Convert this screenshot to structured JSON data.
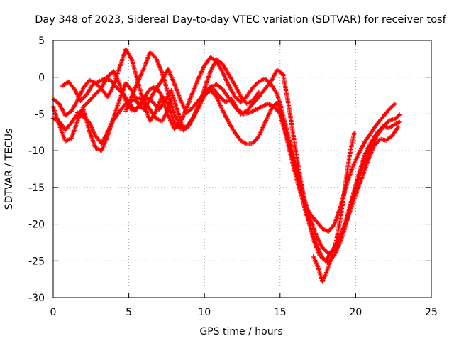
{
  "chart_data": {
    "type": "scatter",
    "title": "Day 348 of 2023, Sidereal Day-to-day VTEC variation (SDTVAR) for receiver tosf",
    "xlabel": "GPS time / hours",
    "ylabel": "SDTVAR / TECUs",
    "xlim": [
      0,
      25
    ],
    "ylim": [
      -30,
      5
    ],
    "xticks": [
      0,
      5,
      10,
      15,
      20,
      25
    ],
    "yticks": [
      5,
      0,
      -5,
      -10,
      -15,
      -20,
      -25,
      -30
    ],
    "grid": true,
    "marker": "+",
    "series_color": "#ff0000",
    "series": [
      {
        "name": "track-1",
        "points": [
          [
            0.0,
            -4.0
          ],
          [
            0.4,
            -6.5
          ],
          [
            0.8,
            -8.7
          ],
          [
            1.2,
            -8.3
          ],
          [
            1.6,
            -6.0
          ],
          [
            2.0,
            -4.0
          ],
          [
            2.4,
            -3.2
          ],
          [
            2.8,
            -2.3
          ],
          [
            3.2,
            -1.4
          ],
          [
            3.6,
            0.1
          ],
          [
            4.0,
            0.8
          ],
          [
            4.4,
            -1.0
          ],
          [
            4.8,
            -3.2
          ],
          [
            5.2,
            -4.5
          ],
          [
            5.6,
            -4.1
          ],
          [
            6.0,
            -2.8
          ],
          [
            6.4,
            -1.6
          ],
          [
            6.8,
            -1.3
          ],
          [
            7.2,
            -2.6
          ],
          [
            7.6,
            -5.2
          ],
          [
            8.0,
            -7.0
          ],
          [
            8.4,
            -6.3
          ],
          [
            8.8,
            -4.3
          ],
          [
            9.2,
            -2.2
          ],
          [
            9.6,
            -0.2
          ],
          [
            10.0,
            1.6
          ],
          [
            10.4,
            2.7
          ],
          [
            10.8,
            2.2
          ],
          [
            11.2,
            0.7
          ],
          [
            11.6,
            -1.1
          ],
          [
            12.0,
            -2.6
          ],
          [
            12.4,
            -3.4
          ],
          [
            12.8,
            -2.6
          ],
          [
            13.2,
            -1.4
          ],
          [
            13.6,
            -0.6
          ],
          [
            14.0,
            -0.2
          ],
          [
            14.4,
            -0.9
          ],
          [
            14.8,
            -2.3
          ],
          [
            15.0,
            -3.6
          ],
          [
            15.4,
            -6.8
          ],
          [
            15.8,
            -10.0
          ],
          [
            16.2,
            -13.2
          ],
          [
            16.6,
            -16.6
          ],
          [
            17.0,
            -19.2
          ],
          [
            17.4,
            -21.6
          ],
          [
            17.8,
            -23.2
          ],
          [
            18.2,
            -24.0
          ],
          [
            18.6,
            -23.5
          ],
          [
            19.0,
            -21.8
          ],
          [
            19.4,
            -19.2
          ],
          [
            19.8,
            -16.2
          ],
          [
            20.2,
            -13.2
          ],
          [
            20.6,
            -10.6
          ],
          [
            21.0,
            -8.9
          ],
          [
            21.4,
            -7.6
          ],
          [
            21.8,
            -6.7
          ],
          [
            22.2,
            -6.9
          ],
          [
            22.6,
            -6.4
          ],
          [
            22.9,
            -6.1
          ]
        ]
      },
      {
        "name": "track-2",
        "points": [
          [
            0.0,
            -3.0
          ],
          [
            0.4,
            -3.6
          ],
          [
            0.8,
            -5.2
          ],
          [
            1.2,
            -4.6
          ],
          [
            1.6,
            -3.2
          ],
          [
            2.0,
            -1.4
          ],
          [
            2.4,
            -0.4
          ],
          [
            2.8,
            -0.8
          ],
          [
            3.2,
            -1.6
          ],
          [
            3.6,
            -2.7
          ],
          [
            4.0,
            -1.1
          ],
          [
            4.4,
            1.4
          ],
          [
            4.8,
            3.8
          ],
          [
            5.2,
            2.4
          ],
          [
            5.6,
            -0.6
          ],
          [
            6.0,
            -3.6
          ],
          [
            6.4,
            -6.0
          ],
          [
            6.8,
            -4.6
          ],
          [
            7.2,
            -2.6
          ],
          [
            7.6,
            -3.6
          ],
          [
            8.0,
            -6.2
          ],
          [
            8.4,
            -7.0
          ],
          [
            8.8,
            -6.8
          ],
          [
            9.2,
            -5.7
          ],
          [
            9.6,
            -4.2
          ],
          [
            10.0,
            -2.5
          ],
          [
            10.4,
            -1.8
          ],
          [
            10.8,
            -2.7
          ],
          [
            11.2,
            -4.5
          ],
          [
            11.6,
            -6.1
          ],
          [
            12.0,
            -7.5
          ],
          [
            12.4,
            -8.6
          ],
          [
            12.8,
            -9.1
          ],
          [
            13.2,
            -9.0
          ],
          [
            13.6,
            -8.0
          ],
          [
            14.0,
            -6.2
          ],
          [
            14.4,
            -4.4
          ],
          [
            14.8,
            -3.4
          ],
          [
            15.0,
            -4.6
          ],
          [
            15.4,
            -7.6
          ],
          [
            15.8,
            -10.8
          ],
          [
            16.2,
            -14.0
          ],
          [
            16.6,
            -17.6
          ],
          [
            17.0,
            -20.4
          ],
          [
            17.4,
            -22.8
          ],
          [
            17.8,
            -24.6
          ],
          [
            18.2,
            -25.2
          ],
          [
            18.6,
            -24.2
          ],
          [
            19.0,
            -22.4
          ],
          [
            19.4,
            -19.7
          ],
          [
            19.8,
            -16.6
          ],
          [
            20.2,
            -13.8
          ],
          [
            20.6,
            -11.6
          ],
          [
            21.0,
            -9.6
          ],
          [
            21.4,
            -8.0
          ],
          [
            21.8,
            -6.8
          ],
          [
            22.2,
            -5.9
          ],
          [
            22.6,
            -5.7
          ],
          [
            22.9,
            -5.1
          ]
        ]
      },
      {
        "name": "track-3",
        "points": [
          [
            0.0,
            -5.6
          ],
          [
            0.4,
            -6.0
          ],
          [
            0.8,
            -7.2
          ],
          [
            1.2,
            -6.2
          ],
          [
            1.6,
            -5.0
          ],
          [
            2.0,
            -4.4
          ],
          [
            2.4,
            -7.4
          ],
          [
            2.8,
            -9.6
          ],
          [
            3.2,
            -10.0
          ],
          [
            3.6,
            -8.0
          ],
          [
            4.0,
            -5.4
          ],
          [
            4.4,
            -3.0
          ],
          [
            4.8,
            -0.8
          ],
          [
            5.2,
            -1.8
          ],
          [
            5.6,
            -3.6
          ],
          [
            6.0,
            -4.4
          ],
          [
            6.4,
            -3.0
          ],
          [
            6.8,
            -1.6
          ],
          [
            7.2,
            -0.4
          ],
          [
            7.6,
            1.1
          ],
          [
            8.0,
            -0.8
          ],
          [
            8.4,
            -3.0
          ],
          [
            8.8,
            -4.8
          ],
          [
            9.2,
            -4.2
          ],
          [
            9.6,
            -3.2
          ],
          [
            10.0,
            -2.2
          ],
          [
            10.4,
            -1.3
          ],
          [
            10.8,
            -1.0
          ],
          [
            11.2,
            -1.6
          ],
          [
            11.6,
            -2.8
          ],
          [
            12.0,
            -4.0
          ],
          [
            12.4,
            -5.0
          ],
          [
            12.8,
            -4.6
          ],
          [
            13.2,
            -3.6
          ],
          [
            13.6,
            -2.7
          ],
          [
            14.0,
            -1.6
          ],
          [
            14.4,
            -0.6
          ],
          [
            14.8,
            1.0
          ],
          [
            15.2,
            0.4
          ],
          [
            15.6,
            -4.2
          ],
          [
            16.0,
            -9.6
          ],
          [
            16.4,
            -14.4
          ],
          [
            16.8,
            -18.6
          ],
          [
            17.2,
            -22.0
          ],
          [
            17.6,
            -24.2
          ],
          [
            18.0,
            -25.0
          ],
          [
            18.4,
            -23.8
          ],
          [
            18.8,
            -22.4
          ],
          [
            19.2,
            -20.6
          ],
          [
            19.6,
            -18.4
          ],
          [
            20.0,
            -16.0
          ],
          [
            20.4,
            -13.8
          ],
          [
            20.8,
            -11.4
          ],
          [
            21.2,
            -9.4
          ],
          [
            21.6,
            -8.4
          ],
          [
            22.0,
            -8.6
          ],
          [
            22.4,
            -8.0
          ],
          [
            22.8,
            -6.8
          ]
        ]
      },
      {
        "name": "track-4",
        "points": [
          [
            0.6,
            -1.2
          ],
          [
            1.0,
            -0.6
          ],
          [
            1.4,
            -1.6
          ],
          [
            1.8,
            -3.2
          ],
          [
            2.2,
            -2.4
          ],
          [
            2.6,
            -1.0
          ],
          [
            3.0,
            -0.6
          ],
          [
            3.4,
            -0.2
          ],
          [
            3.8,
            -0.4
          ],
          [
            4.2,
            -1.4
          ],
          [
            4.6,
            -2.2
          ],
          [
            5.0,
            -3.4
          ],
          [
            5.4,
            -4.6
          ],
          [
            5.8,
            -3.8
          ],
          [
            6.2,
            -2.8
          ],
          [
            6.6,
            -3.4
          ],
          [
            7.0,
            -4.4
          ],
          [
            7.4,
            -3.2
          ],
          [
            7.8,
            -1.8
          ],
          [
            8.2,
            -4.4
          ],
          [
            8.6,
            -7.2
          ],
          [
            9.0,
            -6.6
          ],
          [
            9.4,
            -4.8
          ],
          [
            9.8,
            -3.0
          ],
          [
            10.2,
            -1.8
          ],
          [
            10.6,
            -1.6
          ],
          [
            11.0,
            -2.6
          ],
          [
            11.4,
            -3.4
          ],
          [
            11.8,
            -3.0
          ],
          [
            12.2,
            -4.4
          ],
          [
            12.6,
            -5.0
          ],
          [
            13.0,
            -4.8
          ],
          [
            13.4,
            -4.4
          ],
          [
            13.8,
            -4.0
          ],
          [
            14.2,
            -3.6
          ],
          [
            14.6,
            -4.0
          ],
          [
            15.0,
            -5.0
          ],
          [
            15.4,
            -8.0
          ],
          [
            15.8,
            -11.4
          ],
          [
            16.2,
            -14.6
          ],
          [
            16.6,
            -17.4
          ],
          [
            17.0,
            -18.6
          ],
          [
            17.4,
            -19.6
          ],
          [
            17.8,
            -20.6
          ],
          [
            18.2,
            -21.0
          ],
          [
            18.6,
            -20.0
          ],
          [
            19.0,
            -17.6
          ],
          [
            19.4,
            -14.6
          ],
          [
            19.8,
            -12.2
          ],
          [
            20.2,
            -10.4
          ],
          [
            20.6,
            -8.8
          ],
          [
            21.0,
            -7.6
          ],
          [
            21.4,
            -6.4
          ],
          [
            21.8,
            -5.4
          ],
          [
            22.2,
            -4.4
          ],
          [
            22.6,
            -3.6
          ]
        ]
      },
      {
        "name": "track-5",
        "points": [
          [
            4.8,
            -4.6
          ],
          [
            5.2,
            -2.6
          ],
          [
            5.6,
            -0.6
          ],
          [
            6.0,
            1.2
          ],
          [
            6.4,
            3.4
          ],
          [
            6.8,
            2.6
          ],
          [
            7.2,
            0.6
          ],
          [
            7.6,
            -2.2
          ],
          [
            8.0,
            -5.0
          ],
          [
            8.4,
            -6.6
          ],
          [
            8.8,
            -6.8
          ],
          [
            9.2,
            -5.8
          ],
          [
            9.6,
            -4.0
          ],
          [
            10.0,
            -1.6
          ],
          [
            10.4,
            0.8
          ],
          [
            10.8,
            2.4
          ],
          [
            11.2,
            1.8
          ],
          [
            11.6,
            0.4
          ],
          [
            12.0,
            -1.0
          ],
          [
            12.4,
            -2.6
          ],
          [
            12.8,
            -3.6
          ],
          [
            13.2,
            -3.2
          ],
          [
            13.6,
            -2.0
          ]
        ]
      },
      {
        "name": "track-6",
        "points": [
          [
            1.6,
            -4.8
          ],
          [
            2.0,
            -5.4
          ],
          [
            2.4,
            -6.2
          ],
          [
            2.8,
            -8.0
          ],
          [
            3.2,
            -9.0
          ],
          [
            3.6,
            -7.4
          ],
          [
            4.0,
            -5.8
          ],
          [
            4.4,
            -4.6
          ],
          [
            4.8,
            -3.6
          ],
          [
            5.2,
            -3.2
          ],
          [
            5.6,
            -2.8
          ],
          [
            6.0,
            -3.2
          ],
          [
            6.4,
            -4.4
          ],
          [
            6.8,
            -5.6
          ],
          [
            7.2,
            -6.0
          ],
          [
            7.6,
            -4.4
          ],
          [
            7.8,
            -3.0
          ]
        ]
      },
      {
        "name": "track-7",
        "points": [
          [
            17.2,
            -24.4
          ],
          [
            17.5,
            -25.8
          ],
          [
            17.8,
            -27.8
          ],
          [
            18.1,
            -26.4
          ],
          [
            18.4,
            -24.4
          ],
          [
            18.7,
            -22.4
          ],
          [
            19.0,
            -19.2
          ],
          [
            19.3,
            -14.8
          ],
          [
            19.6,
            -10.6
          ],
          [
            19.9,
            -7.6
          ]
        ]
      }
    ]
  }
}
